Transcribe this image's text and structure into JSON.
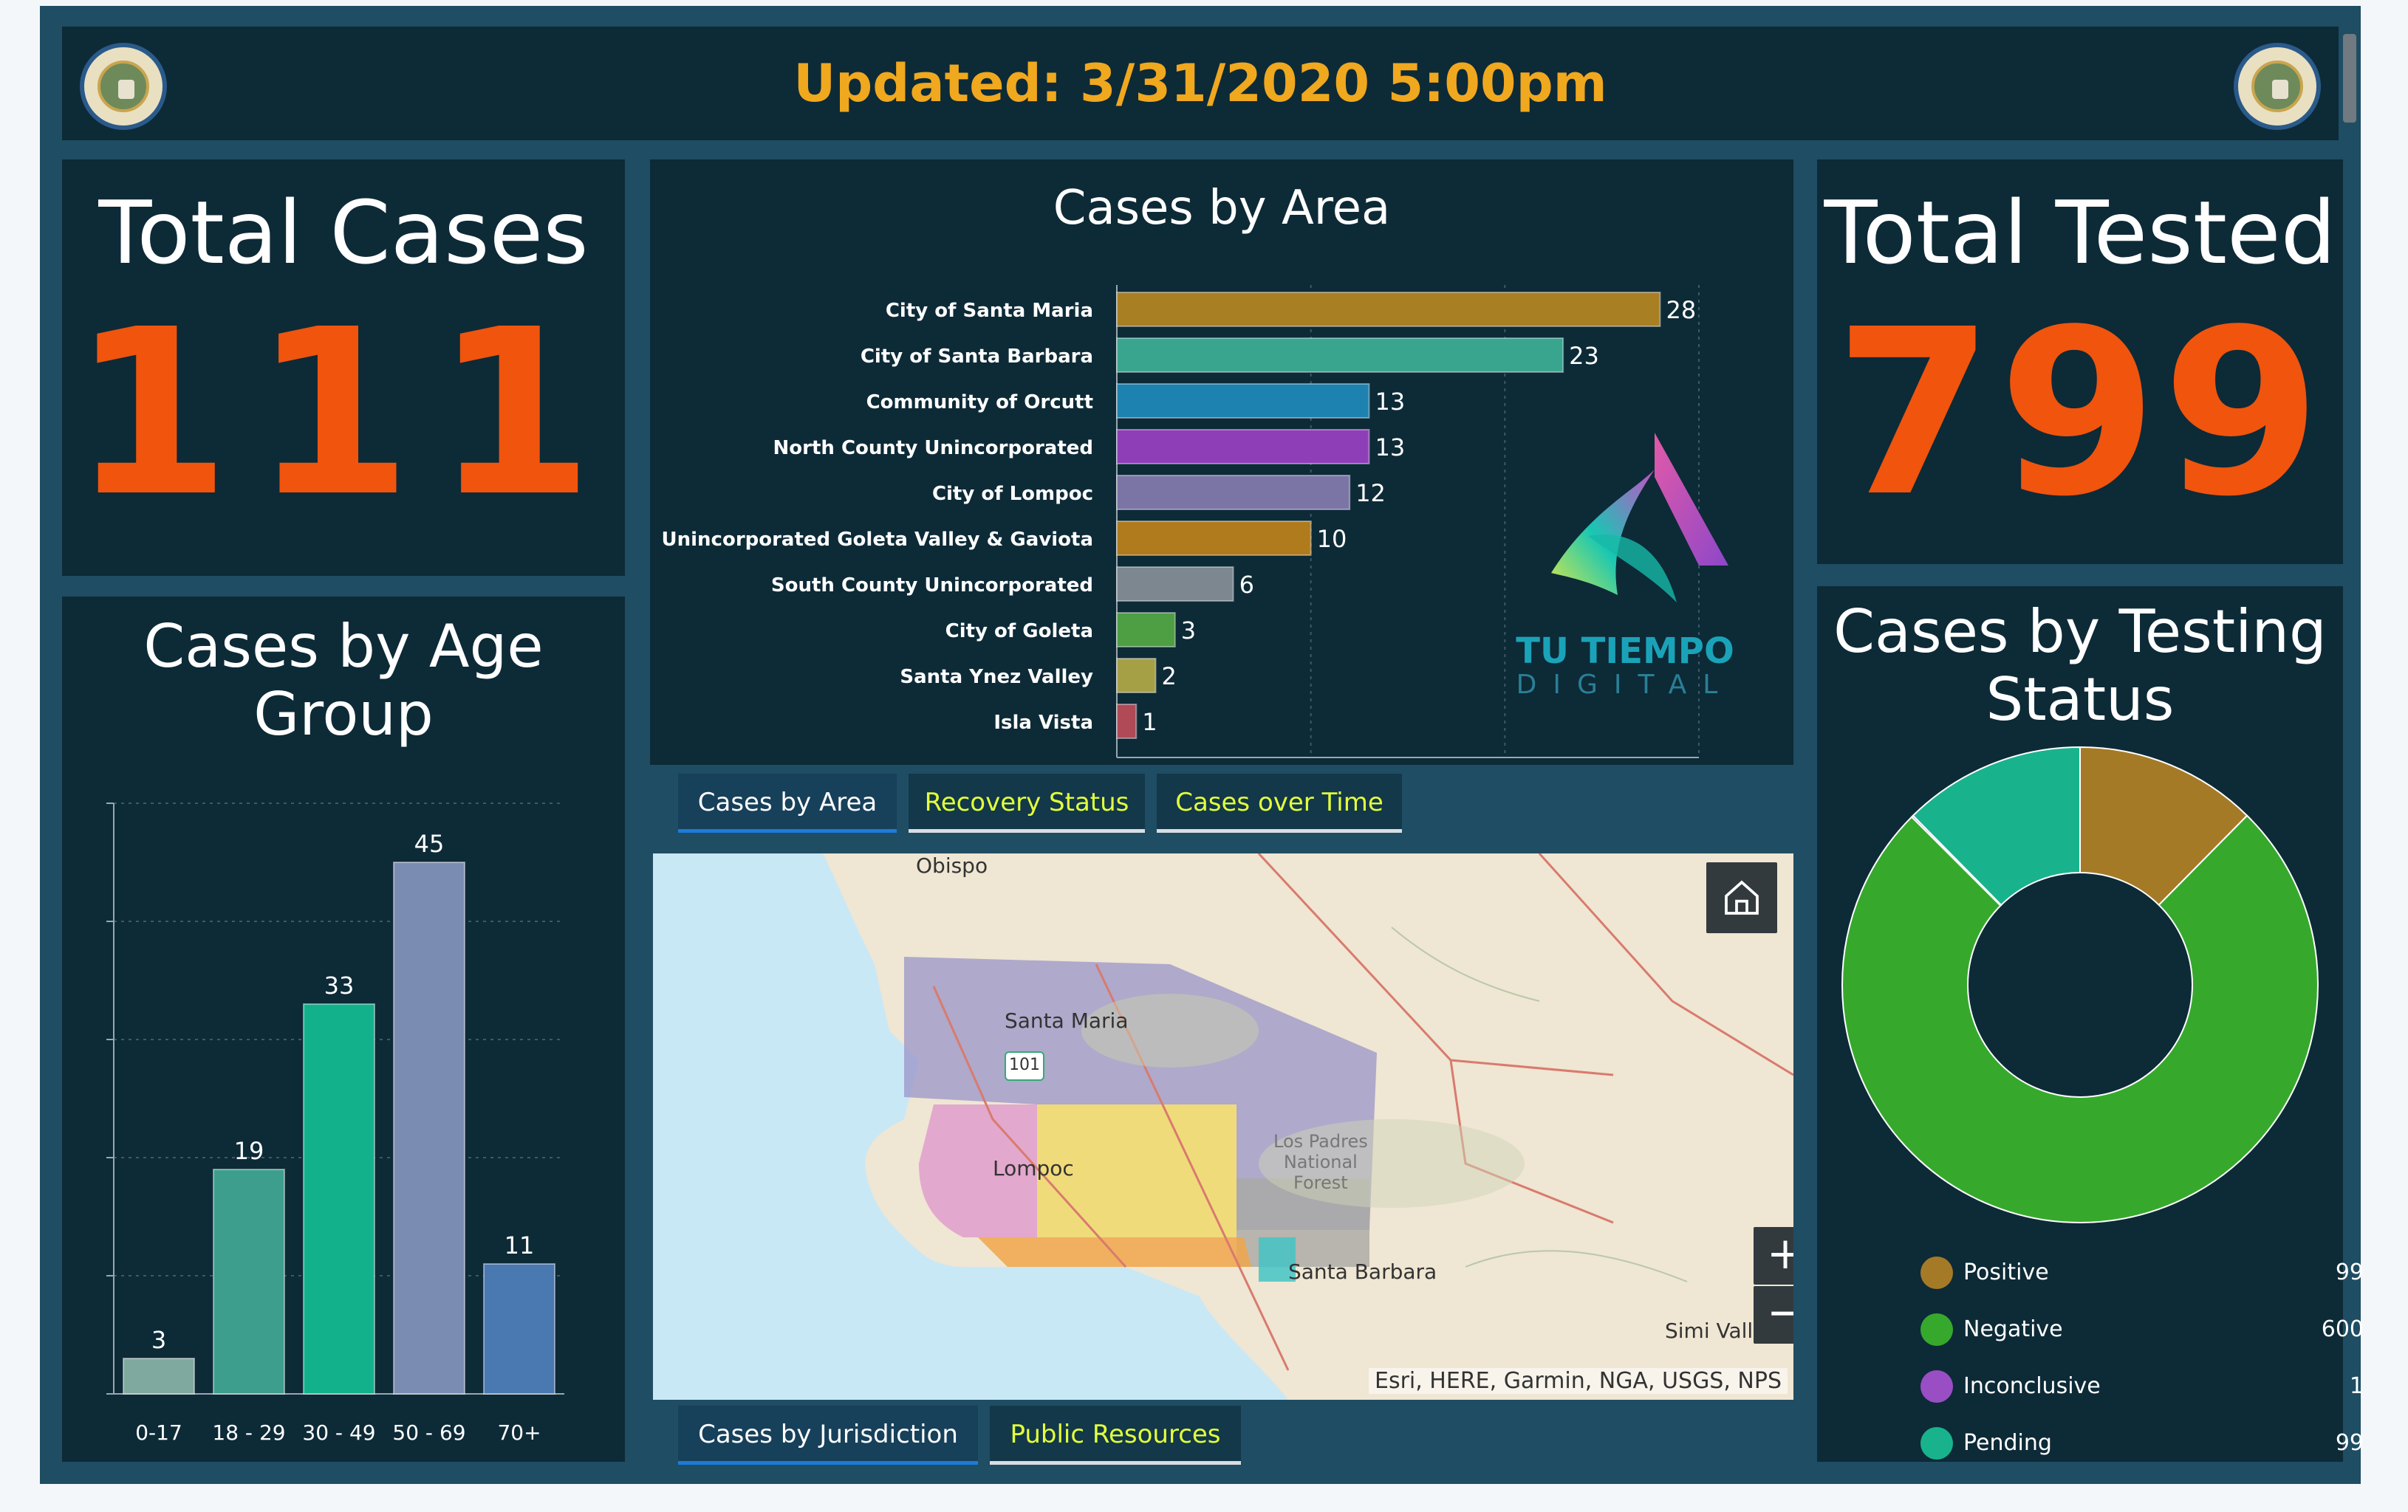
{
  "header": {
    "title": "Updated: 3/31/2020 5:00pm"
  },
  "total_cases": {
    "title": "Total Cases",
    "value": "111"
  },
  "total_tested": {
    "title": "Total Tested",
    "value": "799"
  },
  "area_panel": {
    "title": "Cases by Area"
  },
  "age_panel": {
    "title_line1": "Cases by Age",
    "title_line2": "Group"
  },
  "status_panel": {
    "title_line1": "Cases by Testing",
    "title_line2": "Status"
  },
  "watermark": {
    "line1": "TU TIEMPO",
    "line2": "DIGITAL"
  },
  "top_tabs": [
    {
      "label": "Cases by Area",
      "active": true
    },
    {
      "label": "Recovery Status",
      "active": false
    },
    {
      "label": "Cases over Time",
      "active": false
    }
  ],
  "bottom_tabs": [
    {
      "label": "Cases by Jurisdiction",
      "active": true
    },
    {
      "label": "Public Resources",
      "active": false
    }
  ],
  "map": {
    "labels": {
      "obispo": "Obispo",
      "santa_maria": "Santa Maria",
      "route": "101",
      "lompoc": "Lompoc",
      "los_padres_1": "Los Padres",
      "los_padres_2": "National",
      "los_padres_3": "Forest",
      "santa_barbara": "Santa Barbara",
      "simi": "Simi Valley"
    },
    "attribution": "Esri, HERE, Garmin, NGA, USGS, NPS",
    "zoom_in": "+",
    "zoom_out": "−",
    "home_icon": "home-icon"
  },
  "colors": {
    "accent": "#f0540d",
    "header_text": "#f0a81e",
    "tab_link": "#e4ff3a",
    "panel": "#0d2a37",
    "frame": "#1f4d63"
  },
  "chart_data": [
    {
      "type": "bar",
      "orientation": "horizontal",
      "title": "Cases by Area",
      "categories": [
        "City of Santa Maria",
        "City of Santa Barbara",
        "Community of Orcutt",
        "North County Unincorporated",
        "City of Lompoc",
        "Unincorporated Goleta Valley & Gaviota",
        "South County Unincorporated",
        "City of Goleta",
        "Santa Ynez Valley",
        "Isla Vista"
      ],
      "values": [
        28,
        23,
        13,
        13,
        12,
        10,
        6,
        3,
        2,
        1
      ],
      "colors": [
        "#a87f22",
        "#3aa58f",
        "#1d82b0",
        "#8e3fb8",
        "#7a75a5",
        "#b07b1c",
        "#7c8790",
        "#4e9e44",
        "#a5a046",
        "#b04a57"
      ],
      "xlim": [
        0,
        30
      ],
      "grid": true
    },
    {
      "type": "bar",
      "title": "Cases by Age Group",
      "categories": [
        "0-17",
        "18 - 29",
        "30 - 49",
        "50 - 69",
        "70+"
      ],
      "values": [
        3,
        19,
        33,
        45,
        11
      ],
      "colors": [
        "#7fa89e",
        "#3d9e8d",
        "#12b08b",
        "#7b8cb3",
        "#4a78b0"
      ],
      "ylim": [
        0,
        50
      ],
      "grid": true
    },
    {
      "type": "pie",
      "title": "Cases by Testing Status",
      "donut": true,
      "labels": [
        "Positive",
        "Negative",
        "Inconclusive",
        "Pending"
      ],
      "values": [
        99,
        600,
        1,
        99
      ],
      "colors": [
        "#a57a27",
        "#36a92c",
        "#9a4ec4",
        "#18b38d"
      ],
      "legend": "bottom"
    }
  ]
}
